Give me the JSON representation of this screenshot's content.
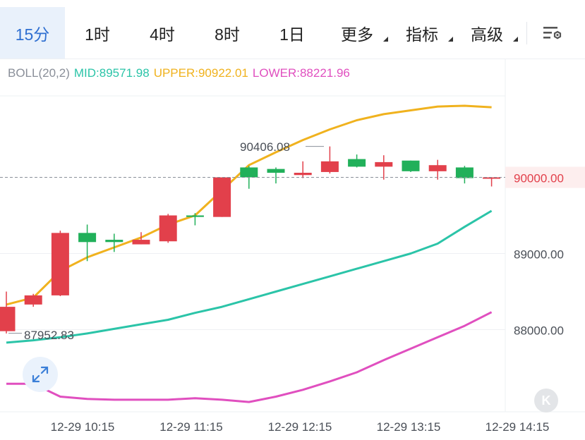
{
  "tabs": [
    {
      "label": "15分",
      "active": true
    },
    {
      "label": "1时"
    },
    {
      "label": "4时"
    },
    {
      "label": "8时"
    },
    {
      "label": "1日"
    },
    {
      "label": "更多",
      "dropdown": true
    },
    {
      "label": "指标",
      "dropdown": true
    },
    {
      "label": "高级",
      "dropdown": true
    }
  ],
  "icons": {
    "settings": "chart-settings-icon",
    "expand": "expand-arrows-icon",
    "kline": "kline-k-icon"
  },
  "boll": {
    "name": "BOLL(20,2)",
    "mid": "MID:89571.98",
    "upper": "UPPER:90922.01",
    "lower": "LOWER:88221.96",
    "colors": {
      "mid": "#2bc4a8",
      "upper": "#f0b21e",
      "lower": "#e04fbf",
      "name": "#8a8f99"
    }
  },
  "chart_data": {
    "type": "candlestick",
    "price_axis": {
      "ticks": [
        88000,
        89000,
        90000
      ],
      "labels": [
        "88000.00",
        "89000.00",
        "90000.00"
      ],
      "position": "right"
    },
    "time_axis": {
      "labels": [
        "12-29 10:15",
        "12-29 11:15",
        "12-29 12:15",
        "12-29 13:15",
        "12-29 14:15"
      ]
    },
    "current_price": {
      "value": 90000,
      "label": "90000.00"
    },
    "annotations": {
      "high": {
        "value": 90406.08,
        "label": "90406.08"
      },
      "low": {
        "value": 87952.83,
        "label": "87952.83"
      }
    },
    "candles": [
      {
        "o": 88300,
        "h": 88500,
        "l": 87950,
        "c": 87980
      },
      {
        "o": 88450,
        "h": 88470,
        "l": 88300,
        "c": 88330
      },
      {
        "o": 89270,
        "h": 89300,
        "l": 88440,
        "c": 88450
      },
      {
        "o": 89150,
        "h": 89380,
        "l": 88900,
        "c": 89270
      },
      {
        "o": 89150,
        "h": 89260,
        "l": 89020,
        "c": 89180
      },
      {
        "o": 89180,
        "h": 89280,
        "l": 89120,
        "c": 89120
      },
      {
        "o": 89500,
        "h": 89520,
        "l": 89140,
        "c": 89160
      },
      {
        "o": 89480,
        "h": 89530,
        "l": 89370,
        "c": 89500
      },
      {
        "o": 90000,
        "h": 90000,
        "l": 89480,
        "c": 89480
      },
      {
        "o": 90000,
        "h": 90150,
        "l": 89850,
        "c": 90130
      },
      {
        "o": 90060,
        "h": 90130,
        "l": 89920,
        "c": 90110
      },
      {
        "o": 90060,
        "h": 90210,
        "l": 89990,
        "c": 90030
      },
      {
        "o": 90210,
        "h": 90406.08,
        "l": 90050,
        "c": 90070
      },
      {
        "o": 90140,
        "h": 90300,
        "l": 90130,
        "c": 90240
      },
      {
        "o": 90200,
        "h": 90290,
        "l": 89970,
        "c": 90140
      },
      {
        "o": 90080,
        "h": 90220,
        "l": 90070,
        "c": 90220
      },
      {
        "o": 90160,
        "h": 90230,
        "l": 89970,
        "c": 90080
      },
      {
        "o": 89990,
        "h": 90150,
        "l": 89920,
        "c": 90130
      },
      {
        "o": 90000,
        "h": 90000,
        "l": 89880,
        "c": 89990
      }
    ],
    "series": [
      {
        "name": "UPPER",
        "color": "#f0b21e",
        "values": [
          88330,
          88420,
          88770,
          88950,
          89080,
          89210,
          89380,
          89500,
          89830,
          90160,
          90330,
          90490,
          90630,
          90750,
          90830,
          90880,
          90930,
          90940,
          90920
        ]
      },
      {
        "name": "MID",
        "color": "#2bc4a8",
        "values": [
          87830,
          87860,
          87900,
          87950,
          88010,
          88070,
          88130,
          88220,
          88300,
          88400,
          88500,
          88600,
          88700,
          88800,
          88900,
          89000,
          89130,
          89350,
          89560
        ]
      },
      {
        "name": "LOWER",
        "color": "#e04fbf",
        "values": [
          87290,
          87290,
          87120,
          87090,
          87080,
          87080,
          87080,
          87100,
          87080,
          87050,
          87120,
          87210,
          87320,
          87440,
          87600,
          87750,
          87900,
          88050,
          88230
        ]
      }
    ]
  }
}
